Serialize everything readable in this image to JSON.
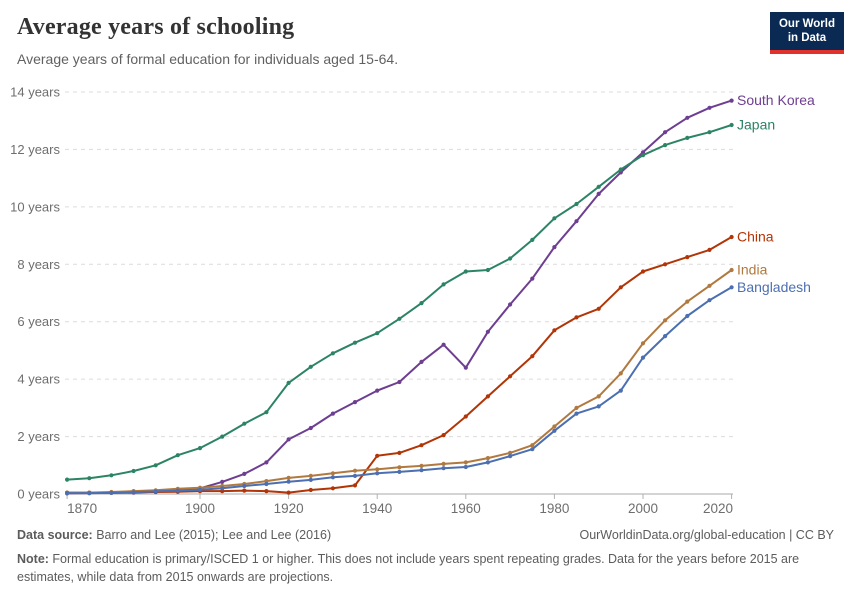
{
  "header": {
    "title": "Average years of schooling",
    "subtitle": "Average years of formal education for individuals aged 15-64.",
    "logo_line1": "Our World",
    "logo_line2": "in Data"
  },
  "footer": {
    "source_label": "Data source:",
    "source_text": " Barro and Lee (2015); Lee and Lee (2016)",
    "link": "OurWorldinData.org/global-education | CC BY",
    "note_label": "Note:",
    "note_text": " Formal education is primary/ISCED 1 or higher. This does not include years spent repeating grades. Data for the years before 2015 are estimates, while data from 2015 onwards are projections."
  },
  "chart_data": {
    "type": "line",
    "title": "Average years of schooling",
    "xlabel": "",
    "ylabel": "",
    "xlim": [
      1870,
      2020
    ],
    "ylim": [
      0,
      14
    ],
    "grid": "horizontal-dashed",
    "legend_position": "right-end-labels",
    "xticks": [
      "1870",
      "1900",
      "1920",
      "1940",
      "1960",
      "1980",
      "2000",
      "2020"
    ],
    "yticks": [
      {
        "value": 0,
        "label": "0 years"
      },
      {
        "value": 2,
        "label": "2 years"
      },
      {
        "value": 4,
        "label": "4 years"
      },
      {
        "value": 6,
        "label": "6 years"
      },
      {
        "value": 8,
        "label": "8 years"
      },
      {
        "value": 10,
        "label": "10 years"
      },
      {
        "value": 12,
        "label": "12 years"
      },
      {
        "value": 14,
        "label": "14 years"
      }
    ],
    "x": [
      1870,
      1875,
      1880,
      1885,
      1890,
      1895,
      1900,
      1905,
      1910,
      1915,
      1920,
      1925,
      1930,
      1935,
      1940,
      1945,
      1950,
      1955,
      1960,
      1965,
      1970,
      1975,
      1980,
      1985,
      1990,
      1995,
      2000,
      2005,
      2010,
      2015,
      2020
    ],
    "series": [
      {
        "name": "South Korea",
        "color": "#6d3e91",
        "values": [
          0.02,
          0.03,
          0.04,
          0.05,
          0.08,
          0.12,
          0.2,
          0.42,
          0.7,
          1.1,
          1.9,
          2.3,
          2.8,
          3.2,
          3.6,
          3.9,
          4.6,
          5.2,
          4.4,
          5.65,
          6.6,
          7.5,
          8.6,
          9.5,
          10.45,
          11.2,
          11.9,
          12.6,
          13.1,
          13.45,
          13.7
        ]
      },
      {
        "name": "Japan",
        "color": "#2c8465",
        "values": [
          0.5,
          0.55,
          0.65,
          0.8,
          1.0,
          1.35,
          1.6,
          2.0,
          2.45,
          2.85,
          3.87,
          4.43,
          4.9,
          5.27,
          5.6,
          6.1,
          6.65,
          7.3,
          7.75,
          7.8,
          8.2,
          8.85,
          9.6,
          10.1,
          10.7,
          11.3,
          11.8,
          12.15,
          12.4,
          12.6,
          12.85
        ]
      },
      {
        "name": "China",
        "color": "#b13507",
        "values": [
          0.05,
          0.05,
          0.05,
          0.06,
          0.07,
          0.08,
          0.1,
          0.1,
          0.12,
          0.1,
          0.05,
          0.14,
          0.2,
          0.3,
          1.33,
          1.43,
          1.7,
          2.05,
          2.7,
          3.4,
          4.1,
          4.8,
          5.7,
          6.15,
          6.45,
          7.2,
          7.75,
          8.0,
          8.25,
          8.5,
          8.95
        ]
      },
      {
        "name": "India",
        "color": "#b0793f",
        "values": [
          0.05,
          0.05,
          0.07,
          0.1,
          0.13,
          0.18,
          0.22,
          0.28,
          0.35,
          0.45,
          0.56,
          0.63,
          0.72,
          0.81,
          0.86,
          0.93,
          0.98,
          1.05,
          1.1,
          1.25,
          1.43,
          1.7,
          2.35,
          3.0,
          3.4,
          4.2,
          5.25,
          6.05,
          6.7,
          7.25,
          7.8
        ]
      },
      {
        "name": "Bangladesh",
        "color": "#4c6fb1",
        "values": [
          0.03,
          0.03,
          0.04,
          0.06,
          0.09,
          0.12,
          0.15,
          0.2,
          0.28,
          0.35,
          0.43,
          0.49,
          0.58,
          0.63,
          0.72,
          0.77,
          0.83,
          0.9,
          0.94,
          1.1,
          1.32,
          1.56,
          2.2,
          2.8,
          3.05,
          3.6,
          4.75,
          5.5,
          6.2,
          6.75,
          7.2
        ]
      }
    ]
  }
}
